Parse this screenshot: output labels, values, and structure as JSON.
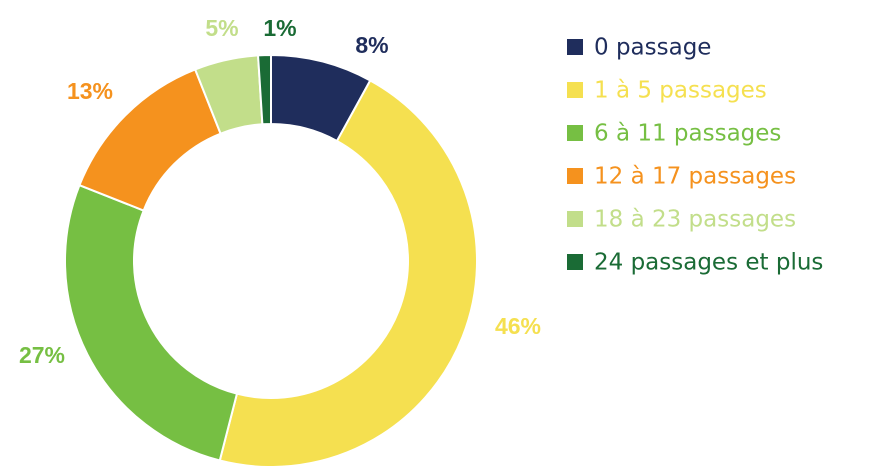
{
  "chart_data": {
    "type": "donut",
    "categories": [
      "0 passage",
      "1 à 5 passages",
      "6 à 11 passages",
      "12 à 17 passages",
      "18 à 23 passages",
      "24 passages et plus"
    ],
    "values": [
      8,
      46,
      27,
      13,
      5,
      1
    ],
    "value_labels": [
      "8%",
      "46%",
      "27%",
      "13%",
      "5%",
      "1%"
    ],
    "colors": [
      "#1f2d5c",
      "#f5e050",
      "#76bf43",
      "#f5921e",
      "#c2de8a",
      "#1a6b35"
    ]
  }
}
